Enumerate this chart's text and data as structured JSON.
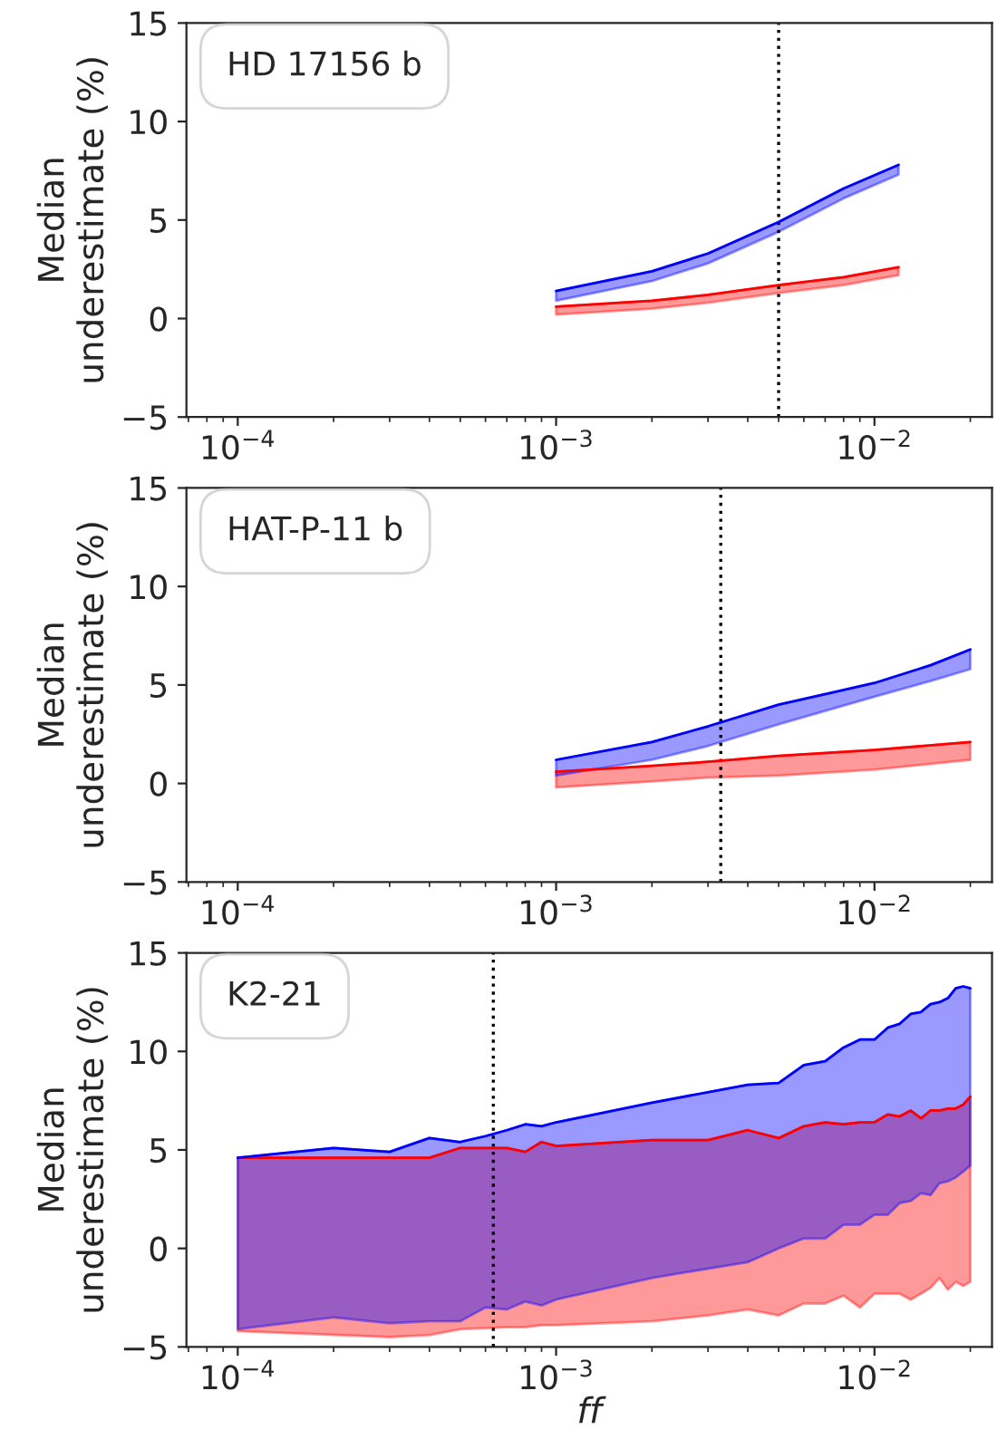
{
  "chart_data": [
    {
      "type": "line",
      "legend_title": "HD 17156 b",
      "ylabel": "Median\nunderestimate (%)",
      "log": "x",
      "xlim": [
        6.9e-05,
        0.0234
      ],
      "ylim": [
        -5,
        15
      ],
      "yticks": [
        -5,
        0,
        5,
        10,
        15
      ],
      "xticks": [
        {
          "value": 0.0001,
          "label": "10$^{−4}$"
        },
        {
          "value": 0.001,
          "label": "10$^{−3}$"
        },
        {
          "value": 0.01,
          "label": "10$^{−2}$"
        }
      ],
      "ref_lines": [
        {
          "axis": "x",
          "value": 0.005,
          "line_style": "dotted",
          "color": "#000000"
        }
      ],
      "series": [
        {
          "color": "#ff0000",
          "x": [
            0.001,
            0.002,
            0.003,
            0.005,
            0.008,
            0.0119
          ],
          "values": [
            0.6,
            0.9,
            1.2,
            1.7,
            2.1,
            2.6
          ],
          "lower": [
            0.2,
            0.5,
            0.8,
            1.3,
            1.7,
            2.2
          ],
          "upper": [
            0.6,
            0.9,
            1.2,
            1.7,
            2.1,
            2.6
          ]
        },
        {
          "color": "#0000ff",
          "x": [
            0.001,
            0.002,
            0.003,
            0.005,
            0.008,
            0.0119
          ],
          "values": [
            1.4,
            2.4,
            3.3,
            4.9,
            6.6,
            7.8
          ],
          "lower": [
            0.9,
            1.9,
            2.8,
            4.4,
            6.1,
            7.3
          ],
          "upper": [
            1.4,
            2.4,
            3.3,
            4.9,
            6.6,
            7.8
          ]
        }
      ]
    },
    {
      "type": "line",
      "legend_title": "HAT-P-11 b",
      "ylabel": "Median\nunderestimate (%)",
      "log": "x",
      "xlim": [
        6.9e-05,
        0.0234
      ],
      "ylim": [
        -5,
        15
      ],
      "yticks": [
        -5,
        0,
        5,
        10,
        15
      ],
      "xticks": [
        {
          "value": 0.0001,
          "label": "10$^{−4}$"
        },
        {
          "value": 0.001,
          "label": "10$^{−3}$"
        },
        {
          "value": 0.01,
          "label": "10$^{−2}$"
        }
      ],
      "ref_lines": [
        {
          "axis": "x",
          "value": 0.00329,
          "line_style": "dotted",
          "color": "#000000"
        }
      ],
      "series": [
        {
          "color": "#ff0000",
          "x": [
            0.001,
            0.002,
            0.003,
            0.005,
            0.01,
            0.02
          ],
          "values": [
            0.6,
            0.9,
            1.1,
            1.4,
            1.7,
            2.1
          ],
          "lower": [
            -0.2,
            0.1,
            0.3,
            0.4,
            0.7,
            1.2
          ],
          "upper": [
            0.6,
            0.9,
            1.1,
            1.4,
            1.7,
            2.1
          ]
        },
        {
          "color": "#0000ff",
          "x": [
            0.001,
            0.002,
            0.003,
            0.005,
            0.01,
            0.015,
            0.02
          ],
          "values": [
            1.2,
            2.1,
            2.9,
            4.0,
            5.1,
            6.0,
            6.8
          ],
          "lower": [
            0.4,
            1.2,
            1.9,
            3.0,
            4.4,
            5.2,
            5.8
          ],
          "upper": [
            1.2,
            2.1,
            2.9,
            4.0,
            5.1,
            6.0,
            6.8
          ]
        }
      ]
    },
    {
      "type": "line",
      "legend_title": "K2-21",
      "ylabel": "Median\nunderestimate (%)",
      "xlabel": "ff",
      "log": "x",
      "xlim": [
        6.9e-05,
        0.0234
      ],
      "ylim": [
        -5,
        15
      ],
      "yticks": [
        -5,
        0,
        5,
        10,
        15
      ],
      "xticks": [
        {
          "value": 0.0001,
          "label": "10$^{−4}$"
        },
        {
          "value": 0.001,
          "label": "10$^{−3}$"
        },
        {
          "value": 0.01,
          "label": "10$^{−2}$"
        }
      ],
      "ref_lines": [
        {
          "axis": "x",
          "value": 0.000635,
          "line_style": "dotted",
          "color": "#000000"
        }
      ],
      "series": [
        {
          "color": "#ff0000",
          "x": [
            0.0001,
            0.0003,
            0.0004,
            0.0005,
            0.0007,
            0.0008,
            0.0009,
            0.001,
            0.002,
            0.003,
            0.004,
            0.005,
            0.006,
            0.007,
            0.008,
            0.009,
            0.01,
            0.011,
            0.012,
            0.013,
            0.014,
            0.015,
            0.016,
            0.017,
            0.018,
            0.019,
            0.02
          ],
          "values": [
            4.6,
            4.6,
            4.6,
            5.1,
            5.1,
            4.9,
            5.4,
            5.2,
            5.5,
            5.5,
            6.0,
            5.6,
            6.2,
            6.4,
            6.3,
            6.4,
            6.4,
            6.8,
            6.7,
            7.0,
            6.6,
            7.0,
            7.0,
            7.1,
            7.1,
            7.3,
            7.7
          ],
          "lower": [
            -4.2,
            -4.5,
            -4.4,
            -4.1,
            -4.0,
            -4.0,
            -3.9,
            -3.9,
            -3.7,
            -3.4,
            -3.1,
            -3.4,
            -2.8,
            -2.8,
            -2.4,
            -3.0,
            -2.3,
            -2.3,
            -2.3,
            -2.6,
            -2.3,
            -2.0,
            -1.5,
            -2.1,
            -1.7,
            -1.9,
            -1.7
          ],
          "upper": [
            4.6,
            4.6,
            4.6,
            5.1,
            5.1,
            4.9,
            5.4,
            5.2,
            5.5,
            5.5,
            6.0,
            5.6,
            6.2,
            6.4,
            6.3,
            6.4,
            6.4,
            6.8,
            6.7,
            7.0,
            6.6,
            7.0,
            7.0,
            7.1,
            7.1,
            7.3,
            7.7
          ]
        },
        {
          "color": "#0000ff",
          "x": [
            0.0001,
            0.0002,
            0.0003,
            0.0004,
            0.0005,
            0.0006,
            0.0007,
            0.0008,
            0.0009,
            0.001,
            0.002,
            0.004,
            0.005,
            0.006,
            0.007,
            0.008,
            0.009,
            0.01,
            0.011,
            0.012,
            0.013,
            0.014,
            0.015,
            0.016,
            0.017,
            0.018,
            0.019,
            0.02
          ],
          "values": [
            4.6,
            5.1,
            4.9,
            5.6,
            5.4,
            5.7,
            6.0,
            6.3,
            6.2,
            6.4,
            7.4,
            8.3,
            8.4,
            9.3,
            9.5,
            10.2,
            10.6,
            10.6,
            11.2,
            11.4,
            11.9,
            12.0,
            12.4,
            12.5,
            12.7,
            13.2,
            13.3,
            13.2
          ],
          "lower": [
            -4.1,
            -3.5,
            -3.8,
            -3.7,
            -3.7,
            -3.0,
            -3.1,
            -2.7,
            -2.9,
            -2.6,
            -1.5,
            -0.7,
            0.0,
            0.5,
            0.5,
            1.2,
            1.2,
            1.7,
            1.7,
            2.3,
            2.4,
            2.8,
            2.7,
            3.3,
            3.4,
            3.6,
            3.9,
            4.2
          ],
          "upper": [
            4.6,
            5.1,
            4.9,
            5.6,
            5.4,
            5.7,
            6.0,
            6.3,
            6.2,
            6.4,
            7.4,
            8.3,
            8.4,
            9.3,
            9.5,
            10.2,
            10.6,
            10.6,
            11.2,
            11.4,
            11.9,
            12.0,
            12.4,
            12.5,
            12.7,
            13.2,
            13.3,
            13.2
          ]
        }
      ]
    }
  ]
}
